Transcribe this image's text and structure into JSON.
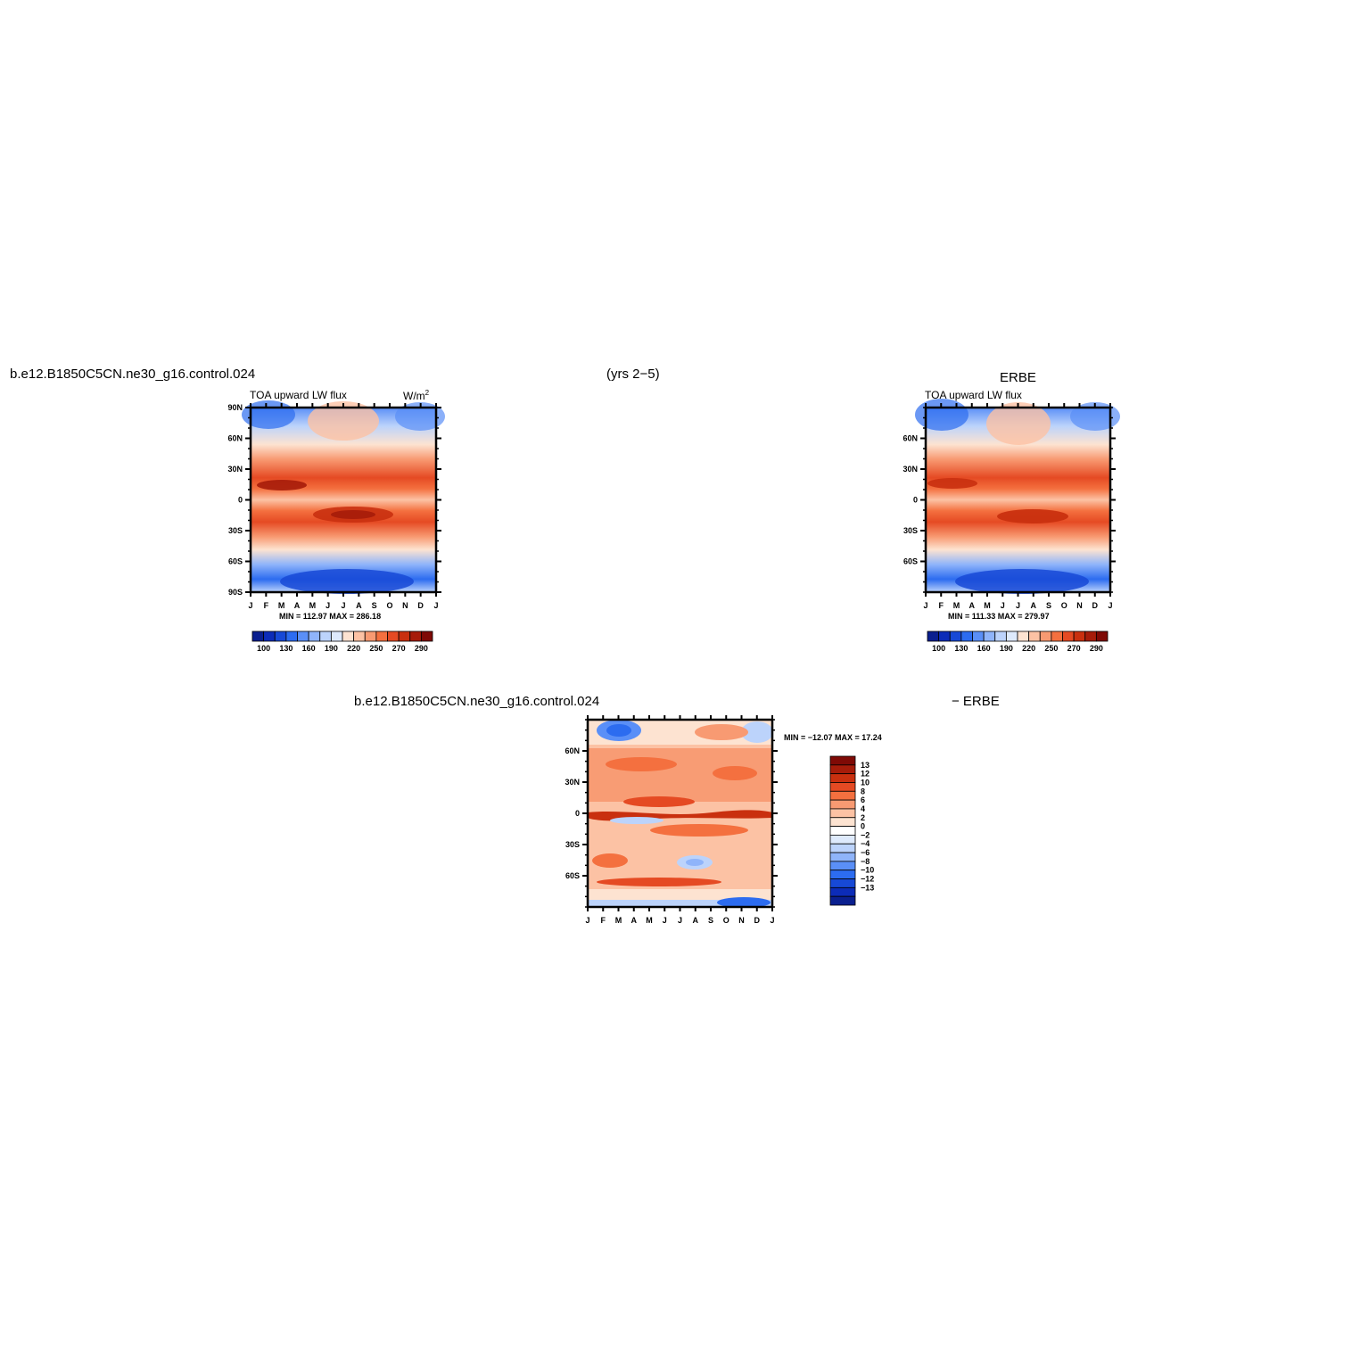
{
  "header": {
    "case_name": "b.e12.B1850C5CN.ne30_g16.control.024",
    "period": "(yrs 2−5)",
    "obs_name": "ERBE"
  },
  "panel_model": {
    "variable": "TOA upward LW flux",
    "units_base": "W/m",
    "units_exp": "2",
    "stats": "MIN = 112.97  MAX = 286.18"
  },
  "panel_obs": {
    "variable": "TOA upward LW flux",
    "stats": "MIN = 111.33  MAX = 279.97"
  },
  "panel_diff": {
    "title_left": "b.e12.B1850C5CN.ne30_g16.control.024",
    "title_right": "− ERBE",
    "stats": "MIN = −12.07  MAX =  17.24"
  },
  "axes": {
    "months": [
      "J",
      "F",
      "M",
      "A",
      "M",
      "J",
      "J",
      "A",
      "S",
      "O",
      "N",
      "D",
      "J"
    ],
    "lat_labels_full": [
      "90N",
      "60N",
      "30N",
      "0",
      "30S",
      "60S",
      "90S"
    ],
    "lat_labels_inner": [
      "60N",
      "30N",
      "0",
      "30S",
      "60S"
    ]
  },
  "colorbar_top": {
    "labels": [
      "100",
      "130",
      "160",
      "190",
      "220",
      "250",
      "270",
      "290"
    ],
    "colors": [
      "#0a1f8f",
      "#0c2cb8",
      "#1749d6",
      "#2c6cf0",
      "#5a8ff7",
      "#8fb4fa",
      "#bcd3fb",
      "#deeafc",
      "#fde3d1",
      "#fcc2a4",
      "#f89a72",
      "#f4703f",
      "#e54a23",
      "#c9300f",
      "#a61c0a",
      "#7f0a06"
    ]
  },
  "colorbar_diff": {
    "labels": [
      "13",
      "12",
      "10",
      "8",
      "6",
      "4",
      "2",
      "0",
      "−2",
      "−4",
      "−6",
      "−8",
      "−10",
      "−12",
      "−13"
    ],
    "colors": [
      "#7f0a06",
      "#a61c0a",
      "#c9300f",
      "#e54a23",
      "#f4703f",
      "#f89a72",
      "#fcc2a4",
      "#fde3d1",
      "#ffffff",
      "#deeafc",
      "#bcd3fb",
      "#8fb4fa",
      "#5a8ff7",
      "#2c6cf0",
      "#1749d6",
      "#0c2cb8",
      "#0a1f8f"
    ]
  },
  "chart_data": [
    {
      "type": "heatmap",
      "title": "TOA upward LW flux",
      "units": "W/m2",
      "x": [
        "J",
        "F",
        "M",
        "A",
        "M",
        "J",
        "J",
        "A",
        "S",
        "O",
        "N",
        "D",
        "J"
      ],
      "y": [
        "90N",
        "60N",
        "30N",
        "0",
        "30S",
        "60S",
        "90S"
      ],
      "zmin": 112.97,
      "zmax": 286.18,
      "colorbar_ticks": [
        100,
        130,
        160,
        190,
        220,
        250,
        270,
        290
      ]
    },
    {
      "type": "heatmap",
      "title": "TOA upward LW flux",
      "units": "W/m2",
      "x": [
        "J",
        "F",
        "M",
        "A",
        "M",
        "J",
        "J",
        "A",
        "S",
        "O",
        "N",
        "D",
        "J"
      ],
      "y": [
        "60N",
        "30N",
        "0",
        "30S",
        "60S"
      ],
      "zmin": 111.33,
      "zmax": 279.97,
      "colorbar_ticks": [
        100,
        130,
        160,
        190,
        220,
        250,
        270,
        290
      ]
    },
    {
      "type": "heatmap",
      "x": [
        "J",
        "F",
        "M",
        "A",
        "M",
        "J",
        "J",
        "A",
        "S",
        "O",
        "N",
        "D",
        "J"
      ],
      "y": [
        "60N",
        "30N",
        "0",
        "30S",
        "60S"
      ],
      "zmin": -12.07,
      "zmax": 17.24,
      "colorbar_ticks": [
        13,
        12,
        10,
        8,
        6,
        4,
        2,
        0,
        -2,
        -4,
        -6,
        -8,
        -10,
        -12,
        -13
      ]
    }
  ]
}
